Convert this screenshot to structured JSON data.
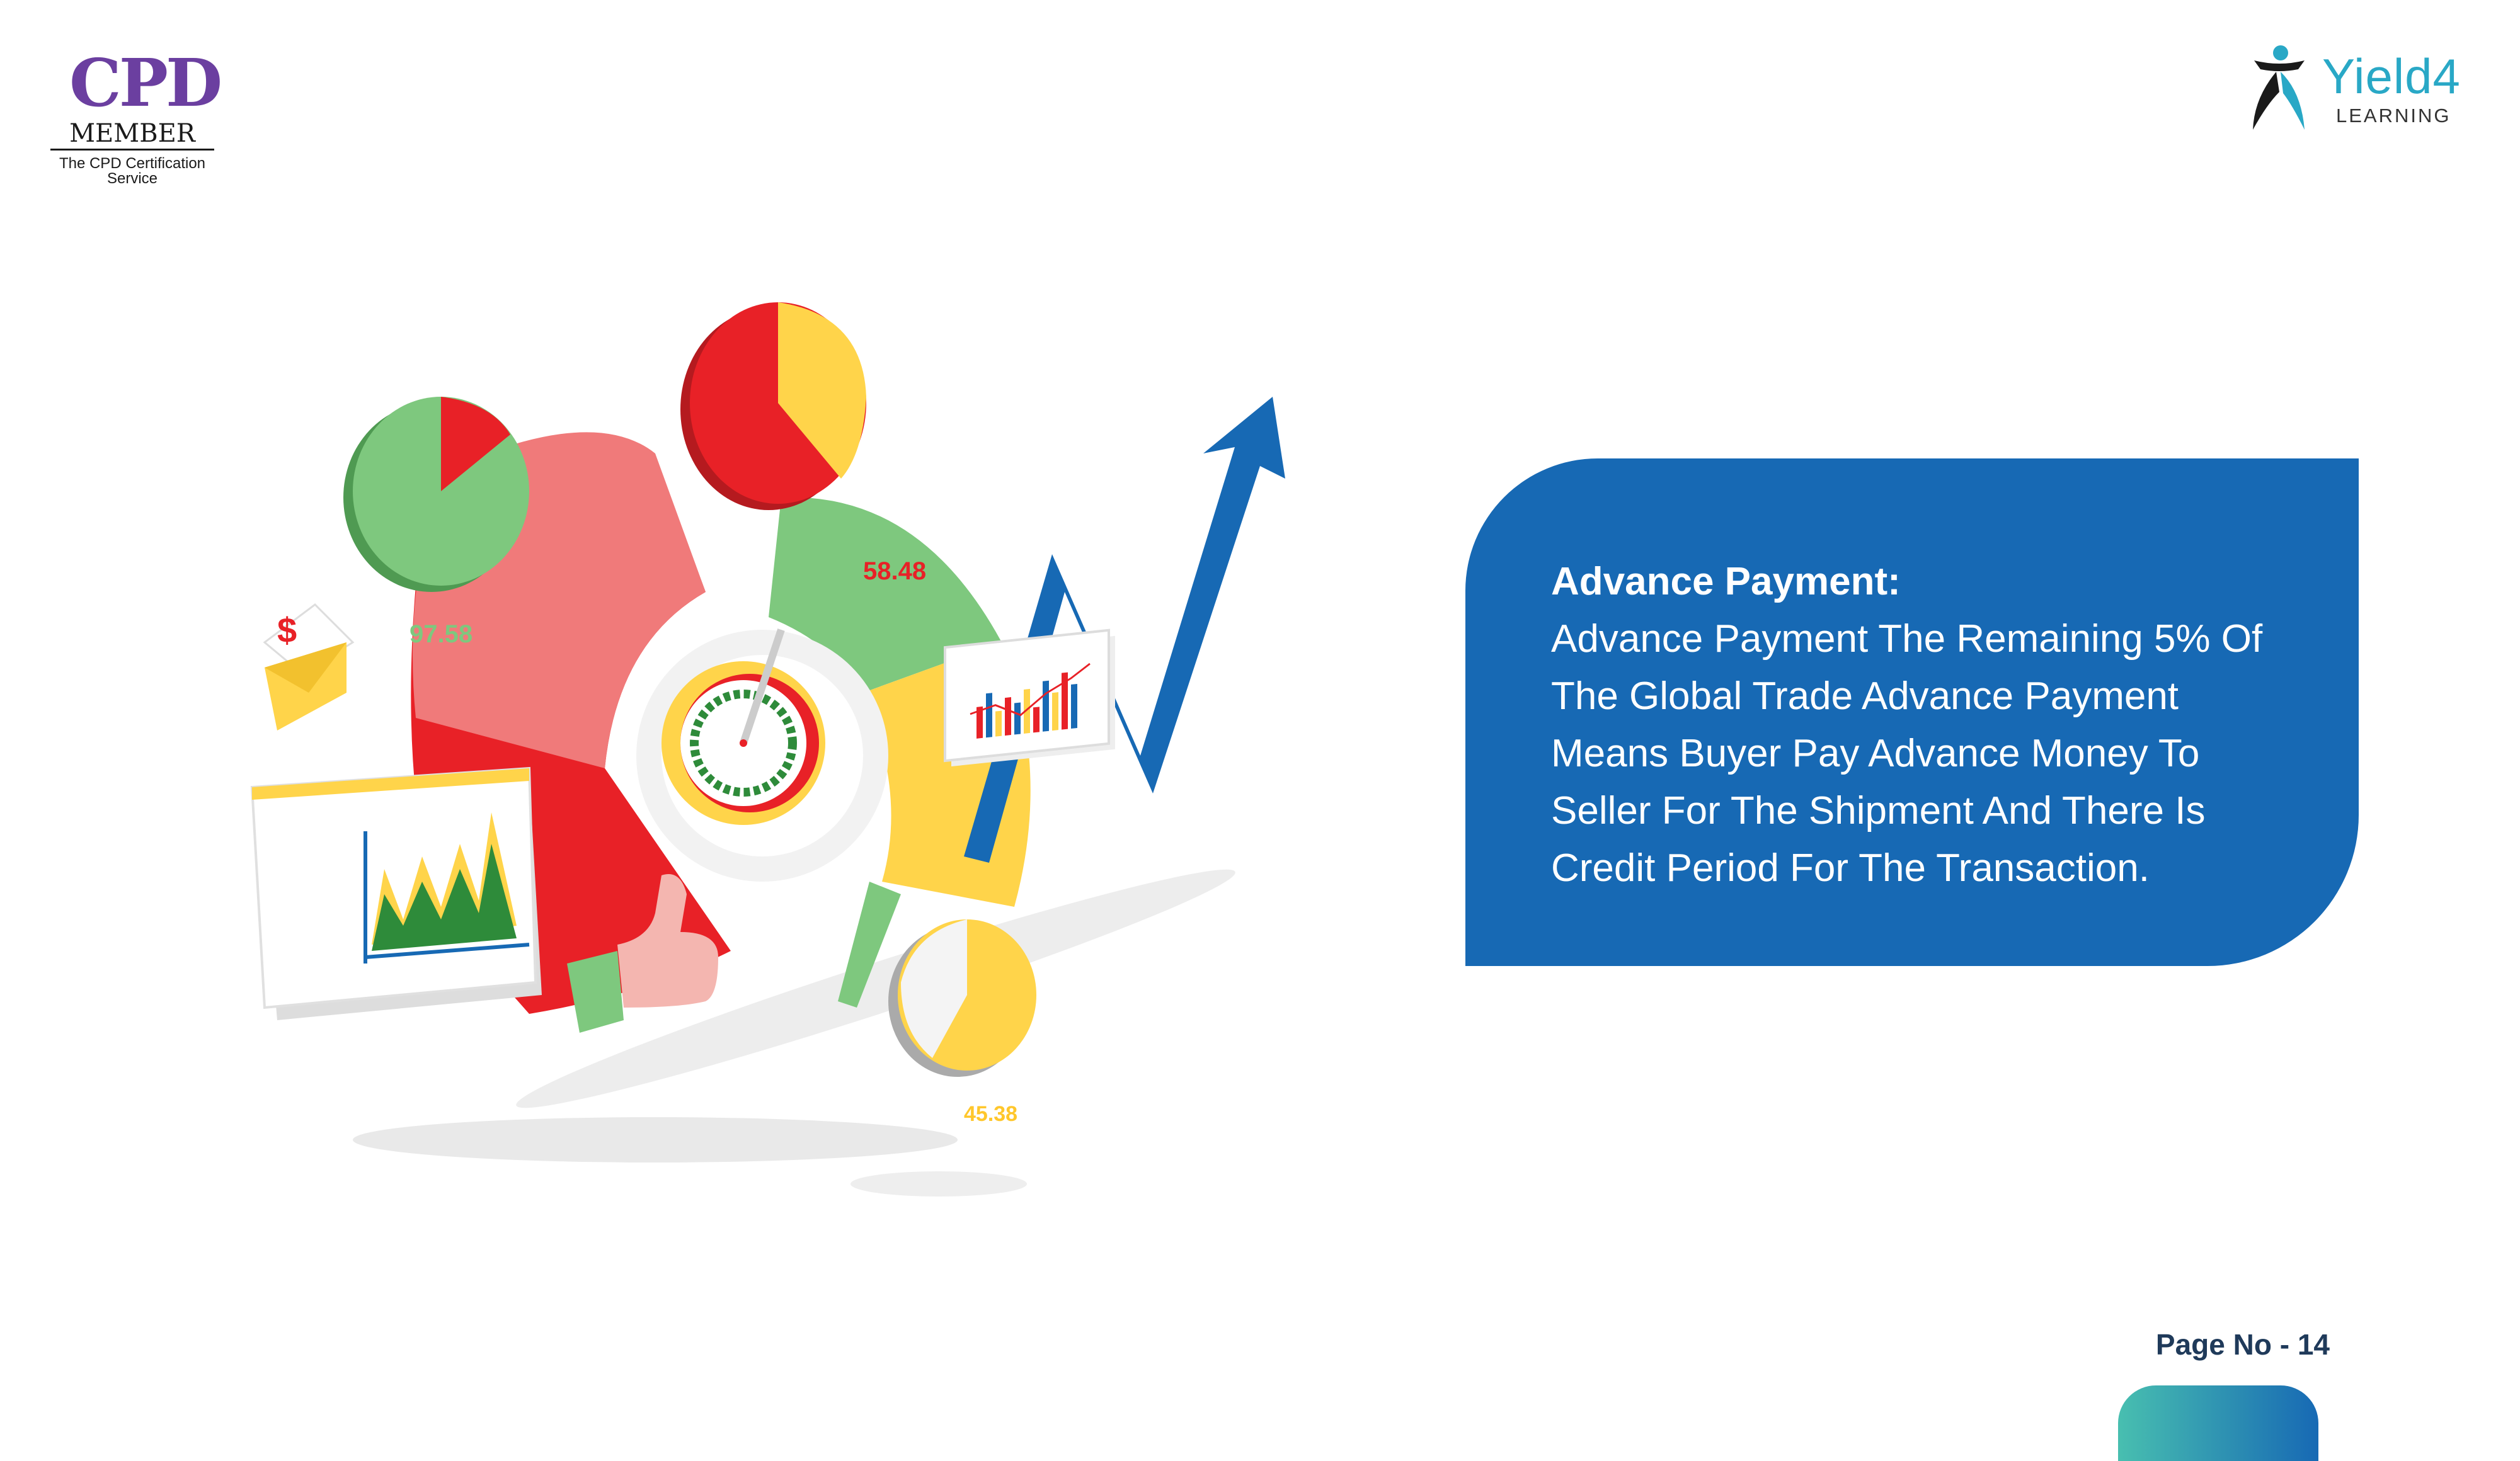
{
  "logos": {
    "cpd_title": "CPD",
    "cpd_member": "MEMBER",
    "cpd_service": "The CPD Certification Service",
    "yield4_name": "Yield4",
    "yield4_sub": "LEARNING"
  },
  "info_box": {
    "title": "Advance Payment:",
    "body": "Advance Payment The Remaining 5% Of The Global Trade Advance Payment Means Buyer Pay Advance Money To Seller For The Shipment And There Is Credit Period For The Transaction.",
    "color": "#1769b4"
  },
  "illustration": {
    "value_1": "97.58",
    "value_2": "58.48",
    "value_3": "45.38",
    "dollar_sign": "$"
  },
  "footer": {
    "page_label": "Page No - 14"
  },
  "colors": {
    "red": "#e82127",
    "pink": "#f07a7a",
    "green": "#7ec87e",
    "yellow": "#ffd44a",
    "blue": "#1769b4"
  }
}
